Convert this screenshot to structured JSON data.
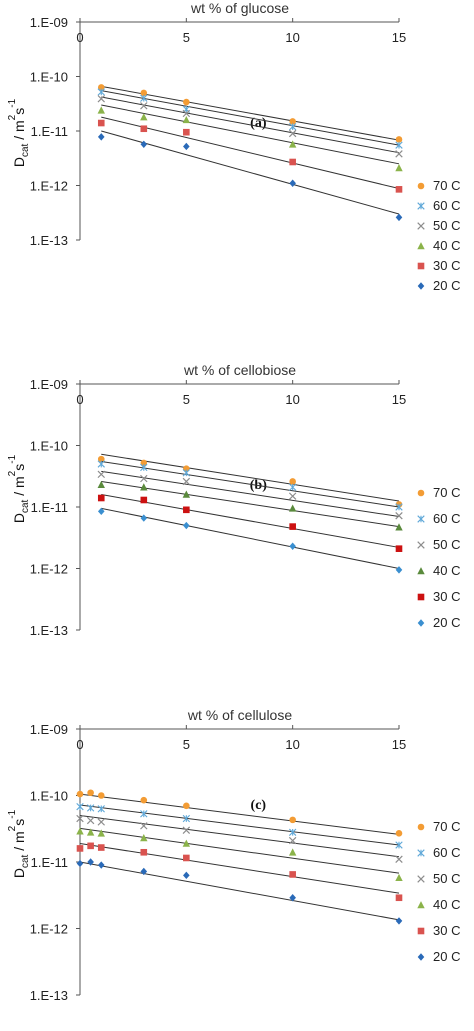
{
  "chart_data": [
    {
      "type": "scatter",
      "panel_label": "(a)",
      "title": "wt % of glucose",
      "ylabel": {
        "main": "D",
        "sub": "cat",
        "rest1": " / m",
        "sup": "2",
        "rest2": "s",
        "sup2": "-1"
      },
      "yscale": "log",
      "ylim": [
        1e-13,
        1e-09
      ],
      "xlim": [
        0,
        15
      ],
      "x_ticks": [
        "0",
        "5",
        "10",
        "15"
      ],
      "y_ticks": [
        "1.E-09",
        "1.E-10",
        "1.E-11",
        "1.E-12",
        "1.E-13"
      ],
      "series": [
        {
          "name": "70 C",
          "color": "#f39c34",
          "marker": "circle",
          "x": [
            1,
            3,
            5,
            10,
            15
          ],
          "y": [
            6.3e-11,
            5e-11,
            3.4e-11,
            1.5e-11,
            7e-12
          ],
          "fit": [
            6.6e-11,
            6.8e-12
          ]
        },
        {
          "name": "60 C",
          "color": "#5fa8d8",
          "marker": "asterisk",
          "x": [
            1,
            3,
            5,
            10,
            15
          ],
          "y": [
            5.2e-11,
            4e-11,
            2.5e-11,
            1.2e-11,
            5.5e-12
          ],
          "fit": [
            5.5e-11,
            5.5e-12
          ]
        },
        {
          "name": "50 C",
          "color": "#8c8c8c",
          "marker": "cross",
          "x": [
            1,
            3,
            5,
            10,
            15
          ],
          "y": [
            3.9e-11,
            2.9e-11,
            2.1e-11,
            9e-12,
            3.8e-12
          ],
          "fit": [
            4.2e-11,
            4e-12
          ]
        },
        {
          "name": "40 C",
          "color": "#8bb34a",
          "marker": "triangle",
          "x": [
            1,
            3,
            5,
            10,
            15
          ],
          "y": [
            2.4e-11,
            1.8e-11,
            1.6e-11,
            5.7e-12,
            2.1e-12
          ],
          "fit": [
            3e-11,
            2.5e-12
          ]
        },
        {
          "name": "30 C",
          "color": "#d9534f",
          "marker": "square",
          "x": [
            1,
            3,
            5,
            10,
            15
          ],
          "y": [
            1.4e-11,
            1.1e-11,
            9.5e-12,
            2.7e-12,
            8.5e-13
          ],
          "fit": [
            1.8e-11,
            8.8e-13
          ]
        },
        {
          "name": "20 C",
          "color": "#2a6ab8",
          "marker": "diamond",
          "x": [
            1,
            3,
            5,
            10,
            15
          ],
          "y": [
            7.8e-12,
            5.7e-12,
            5.2e-12,
            1.1e-12,
            2.6e-13
          ],
          "fit": [
            1e-11,
            3e-13
          ]
        }
      ]
    },
    {
      "type": "scatter",
      "panel_label": "(b)",
      "title": "wt % of cellobiose",
      "ylabel": {
        "main": "D",
        "sub": "cat",
        "rest1": " / m",
        "sup": "2",
        "rest2": "s",
        "sup2": "-1"
      },
      "yscale": "log",
      "ylim": [
        1e-13,
        1e-09
      ],
      "xlim": [
        0,
        15
      ],
      "x_ticks": [
        "0",
        "5",
        "10",
        "15"
      ],
      "y_ticks": [
        "1.E-09",
        "1.E-10",
        "1.E-11",
        "1.E-12",
        "1.E-13"
      ],
      "series": [
        {
          "name": "70 C",
          "color": "#f39c34",
          "marker": "circle",
          "x": [
            1,
            3,
            5,
            10,
            15
          ],
          "y": [
            6e-11,
            5.2e-11,
            4.2e-11,
            2.6e-11,
            1.1e-11
          ],
          "fit": [
            7.2e-11,
            1.25e-11
          ]
        },
        {
          "name": "60 C",
          "color": "#5fa8d8",
          "marker": "asterisk",
          "x": [
            1,
            3,
            5,
            10,
            15
          ],
          "y": [
            5e-11,
            4.4e-11,
            3.6e-11,
            2.1e-11,
            1e-11
          ],
          "fit": [
            5.5e-11,
            1e-11
          ]
        },
        {
          "name": "50 C",
          "color": "#8c8c8c",
          "marker": "cross",
          "x": [
            1,
            3,
            5,
            10,
            15
          ],
          "y": [
            3.4e-11,
            2.9e-11,
            2.6e-11,
            1.5e-11,
            7.2e-12
          ],
          "fit": [
            3.8e-11,
            7e-12
          ]
        },
        {
          "name": "40 C",
          "color": "#5a8a3c",
          "marker": "triangle",
          "x": [
            1,
            3,
            5,
            10,
            15
          ],
          "y": [
            2.3e-11,
            2.1e-11,
            1.6e-11,
            9.5e-12,
            4.7e-12
          ],
          "fit": [
            2.6e-11,
            4.8e-12
          ]
        },
        {
          "name": "30 C",
          "color": "#cc1111",
          "marker": "square",
          "x": [
            1,
            3,
            5,
            10,
            15
          ],
          "y": [
            1.4e-11,
            1.3e-11,
            9e-12,
            4.8e-12,
            2.1e-12
          ],
          "fit": [
            1.6e-11,
            2.2e-12
          ]
        },
        {
          "name": "20 C",
          "color": "#3a8fd0",
          "marker": "diamond",
          "x": [
            1,
            3,
            5,
            10,
            15
          ],
          "y": [
            8.5e-12,
            6.6e-12,
            5e-12,
            2.3e-12,
            9.5e-13
          ],
          "fit": [
            9.5e-12,
            1e-12
          ]
        }
      ]
    },
    {
      "type": "scatter",
      "panel_label": "(c)",
      "title": "wt % of cellulose",
      "ylabel": {
        "main": "D",
        "sub": "cat",
        "rest1": " / m",
        "sup": "2",
        "rest2": "s",
        "sup2": "-1"
      },
      "yscale": "log",
      "ylim": [
        1e-13,
        1e-09
      ],
      "xlim": [
        0,
        15
      ],
      "x_ticks": [
        "0",
        "5",
        "10",
        "15"
      ],
      "y_ticks": [
        "1.E-09",
        "1.E-10",
        "1.E-11",
        "1.E-12",
        "1.E-13"
      ],
      "series": [
        {
          "name": "70 C",
          "color": "#f39c34",
          "marker": "circle",
          "x": [
            0,
            0.5,
            1,
            3,
            5,
            10,
            15
          ],
          "y": [
            1.05e-10,
            1.1e-10,
            1e-10,
            8.5e-11,
            7e-11,
            4.3e-11,
            2.7e-11
          ],
          "fit": [
            1.05e-10,
            2.6e-11
          ]
        },
        {
          "name": "60 C",
          "color": "#5fa8d8",
          "marker": "asterisk",
          "x": [
            0,
            0.5,
            1,
            3,
            5,
            10,
            15
          ],
          "y": [
            6.8e-11,
            6.5e-11,
            6.3e-11,
            5.3e-11,
            4.5e-11,
            2.8e-11,
            1.8e-11
          ],
          "fit": [
            7.2e-11,
            1.8e-11
          ]
        },
        {
          "name": "50 C",
          "color": "#8c8c8c",
          "marker": "cross",
          "x": [
            0,
            0.5,
            1,
            3,
            5,
            10,
            15
          ],
          "y": [
            4.5e-11,
            4.2e-11,
            4e-11,
            3.5e-11,
            3e-11,
            2.1e-11,
            1.1e-11
          ],
          "fit": [
            5e-11,
            1.2e-11
          ]
        },
        {
          "name": "40 C",
          "color": "#8bb34a",
          "marker": "triangle",
          "x": [
            0,
            0.5,
            1,
            3,
            5,
            10,
            15
          ],
          "y": [
            2.9e-11,
            2.8e-11,
            2.7e-11,
            2.3e-11,
            1.9e-11,
            1.4e-11,
            5.8e-12
          ],
          "fit": [
            3.2e-11,
            6.8e-12
          ]
        },
        {
          "name": "30 C",
          "color": "#d9534f",
          "marker": "square",
          "x": [
            0,
            0.5,
            1,
            3,
            5,
            10,
            15
          ],
          "y": [
            1.6e-11,
            1.75e-11,
            1.65e-11,
            1.4e-11,
            1.15e-11,
            6.5e-12,
            2.9e-12
          ],
          "fit": [
            1.9e-11,
            3.4e-12
          ]
        },
        {
          "name": "20 C",
          "color": "#2a6ab8",
          "marker": "diamond",
          "x": [
            0,
            0.5,
            1,
            3,
            5,
            10,
            15
          ],
          "y": [
            9.5e-12,
            1e-11,
            9e-12,
            7.2e-12,
            6.3e-12,
            2.9e-12,
            1.3e-12
          ],
          "fit": [
            1e-11,
            1.35e-12
          ]
        }
      ]
    }
  ]
}
